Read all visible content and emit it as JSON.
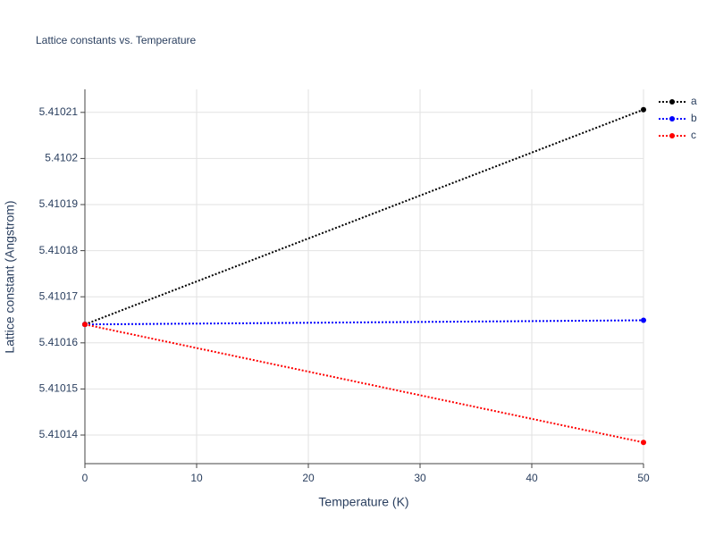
{
  "chart_data": {
    "type": "line",
    "title": "Lattice constants vs. Temperature",
    "x_label": "Temperature (K)",
    "y_label": "Lattice constant (Angstrom)",
    "x": [
      0,
      50
    ],
    "series": [
      {
        "name": "a",
        "color": "#000000",
        "values": [
          5.410164,
          5.4102106
        ]
      },
      {
        "name": "b",
        "color": "#0000ff",
        "values": [
          5.410164,
          5.4101649
        ]
      },
      {
        "name": "c",
        "color": "#ff0000",
        "values": [
          5.410164,
          5.4101384
        ]
      }
    ],
    "xlim": [
      0,
      50
    ],
    "xticks": [
      0,
      10,
      20,
      30,
      40,
      50
    ],
    "ylim": [
      5.4101338,
      5.410215
    ],
    "yticks": [
      5.41014,
      5.41015,
      5.41016,
      5.41017,
      5.41018,
      5.41019,
      5.4102,
      5.41021
    ],
    "grid": true,
    "legend": "top-right"
  }
}
